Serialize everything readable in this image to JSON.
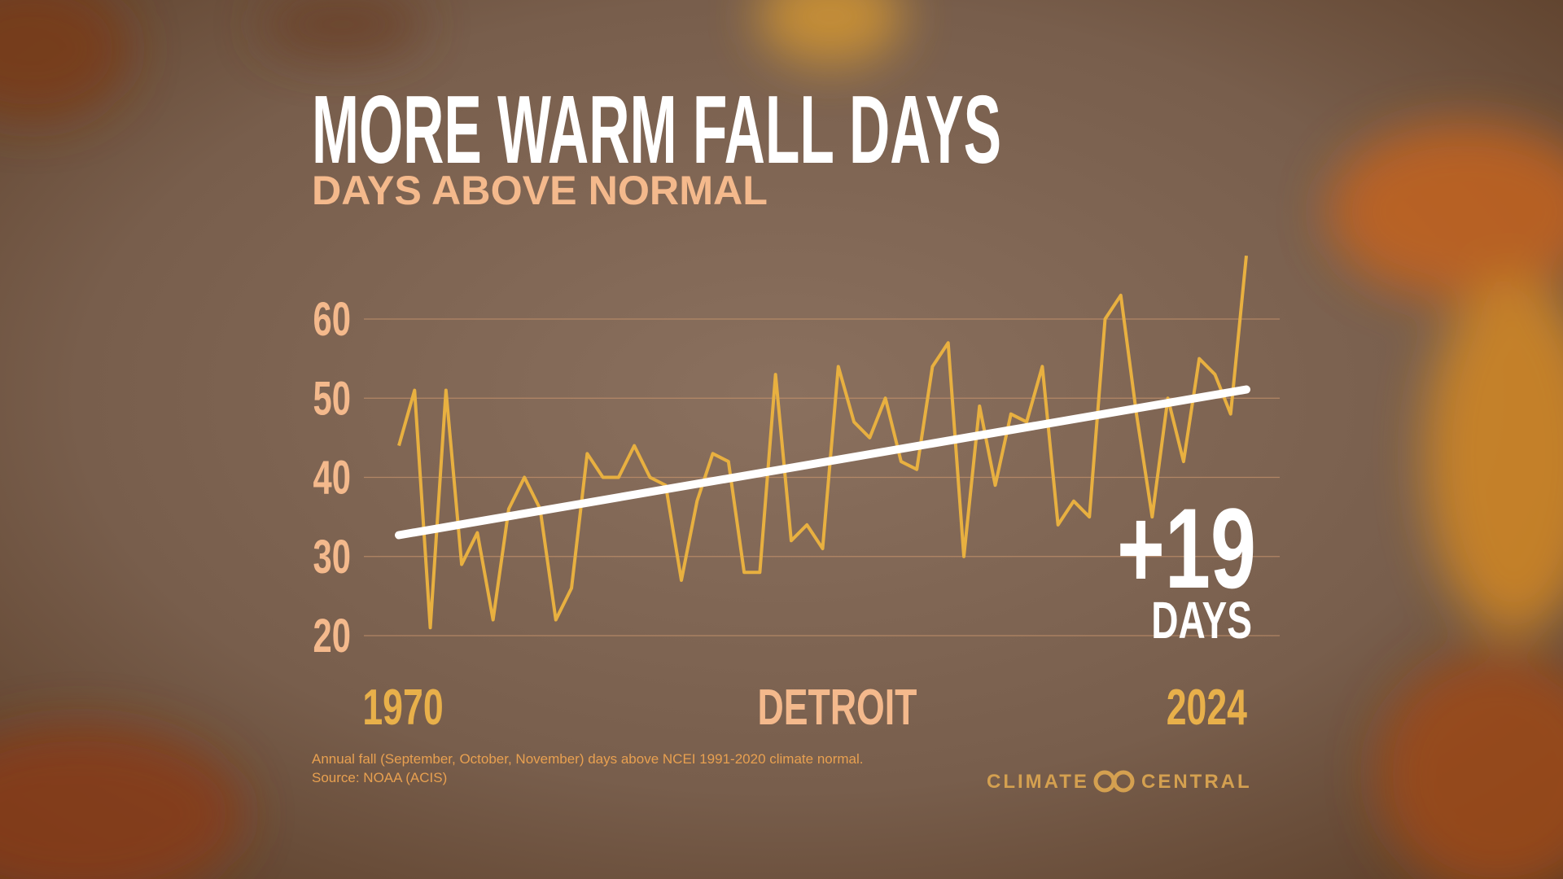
{
  "chart_data": {
    "type": "line",
    "title": "MORE WARM FALL DAYS",
    "subtitle": "DAYS ABOVE NORMAL",
    "location": "DETROIT",
    "x": [
      1970,
      1971,
      1972,
      1973,
      1974,
      1975,
      1976,
      1977,
      1978,
      1979,
      1980,
      1981,
      1982,
      1983,
      1984,
      1985,
      1986,
      1987,
      1988,
      1989,
      1990,
      1991,
      1992,
      1993,
      1994,
      1995,
      1996,
      1997,
      1998,
      1999,
      2000,
      2001,
      2002,
      2003,
      2004,
      2005,
      2006,
      2007,
      2008,
      2009,
      2010,
      2011,
      2012,
      2013,
      2014,
      2015,
      2016,
      2017,
      2018,
      2019,
      2020,
      2021,
      2022,
      2023,
      2024
    ],
    "series": [
      {
        "name": "Days above normal",
        "color": "#e8b040",
        "values": [
          44,
          51,
          21,
          51,
          29,
          33,
          22,
          36,
          40,
          36,
          22,
          26,
          43,
          40,
          40,
          44,
          40,
          39,
          27,
          37,
          43,
          42,
          28,
          28,
          53,
          32,
          34,
          31,
          54,
          47,
          45,
          50,
          42,
          41,
          54,
          57,
          30,
          49,
          39,
          48,
          47,
          54,
          34,
          37,
          35,
          60,
          63,
          48,
          35,
          50,
          42,
          55,
          53,
          48,
          68
        ]
      }
    ],
    "trend": {
      "color": "#ffffff",
      "x": [
        1970,
        2024
      ],
      "values": [
        32.7,
        51.1
      ]
    },
    "annotation": {
      "value": "+19",
      "unit": "DAYS"
    },
    "xlim": [
      1970,
      2024
    ],
    "xticks": [
      1970,
      2024
    ],
    "ylim": [
      20,
      60
    ],
    "yticks": [
      20,
      30,
      40,
      50,
      60
    ],
    "grid": true,
    "footnote": [
      "Annual fall (September, October, November) days above NCEI 1991-2020 climate normal.",
      "Source: NOAA (ACIS)"
    ],
    "brand": [
      "CLIMATE",
      "CENTRAL"
    ]
  }
}
